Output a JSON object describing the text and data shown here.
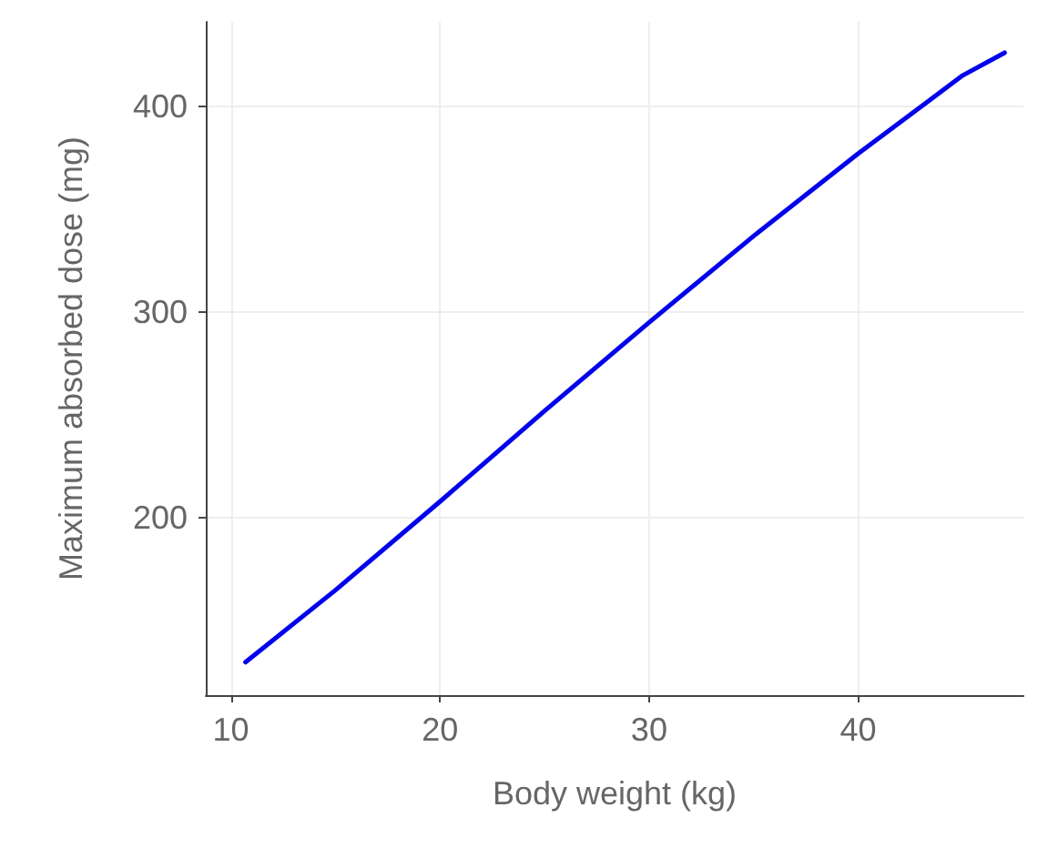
{
  "chart_data": {
    "type": "line",
    "xlabel": "Body weight (kg)",
    "ylabel": "Maximum absorbed dose (mg)",
    "series": [
      {
        "color": "#0000ee",
        "x": [
          10.7,
          15,
          20,
          25,
          30,
          35,
          40,
          45,
          47
        ],
        "values": [
          130,
          165,
          208,
          252,
          295,
          337,
          377,
          415,
          426
        ]
      }
    ],
    "xlim": [
      8.8,
      47.9
    ],
    "xticks": [
      10,
      20,
      30,
      40
    ],
    "ylim": [
      114,
      441
    ],
    "yticks": [
      200,
      300,
      400
    ],
    "grid": true,
    "marker": "none",
    "line_style": "solid"
  }
}
